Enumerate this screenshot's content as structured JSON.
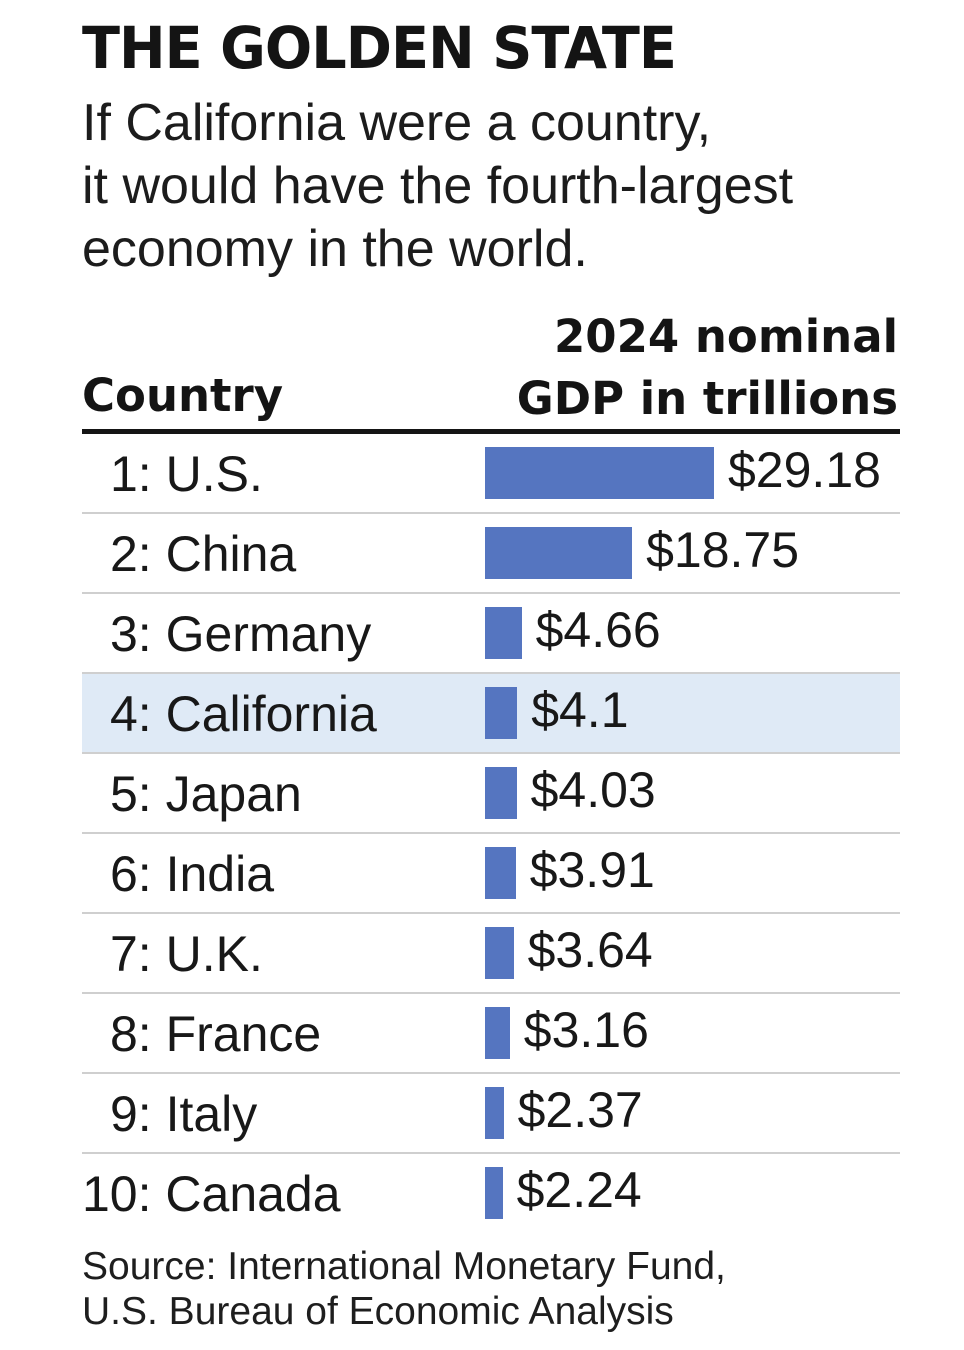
{
  "chart_data": {
    "type": "bar",
    "orientation": "horizontal",
    "title": "THE GOLDEN STATE",
    "subtitle_lines": [
      "If California were a country,",
      "it would have the fourth-largest",
      "economy in the world."
    ],
    "column_headers": {
      "country": "Country",
      "gdp_lines": [
        "2024 nominal",
        "GDP in trillions"
      ]
    },
    "categories": [
      "1: U.S.",
      "2: China",
      "3: Germany",
      "4: California",
      "5: Japan",
      "6: India",
      "7: U.K.",
      "8: France",
      "9: Italy",
      "10: Canada"
    ],
    "values": [
      29.18,
      18.75,
      4.66,
      4.1,
      4.03,
      3.91,
      3.64,
      3.16,
      2.37,
      2.24
    ],
    "value_labels": [
      "$29.18",
      "$18.75",
      "$4.66",
      "$4.1",
      "$4.03",
      "$3.91",
      "$3.64",
      "$3.16",
      "$2.37",
      "$2.24"
    ],
    "highlight_category": "4: California",
    "xlim": [
      0,
      29.18
    ],
    "source_lines": [
      "Source: International Monetary Fund,",
      "U.S. Bureau of Economic Analysis"
    ]
  },
  "colors": {
    "bar": "#5575c0",
    "highlight_row": "#dfeaf6"
  }
}
